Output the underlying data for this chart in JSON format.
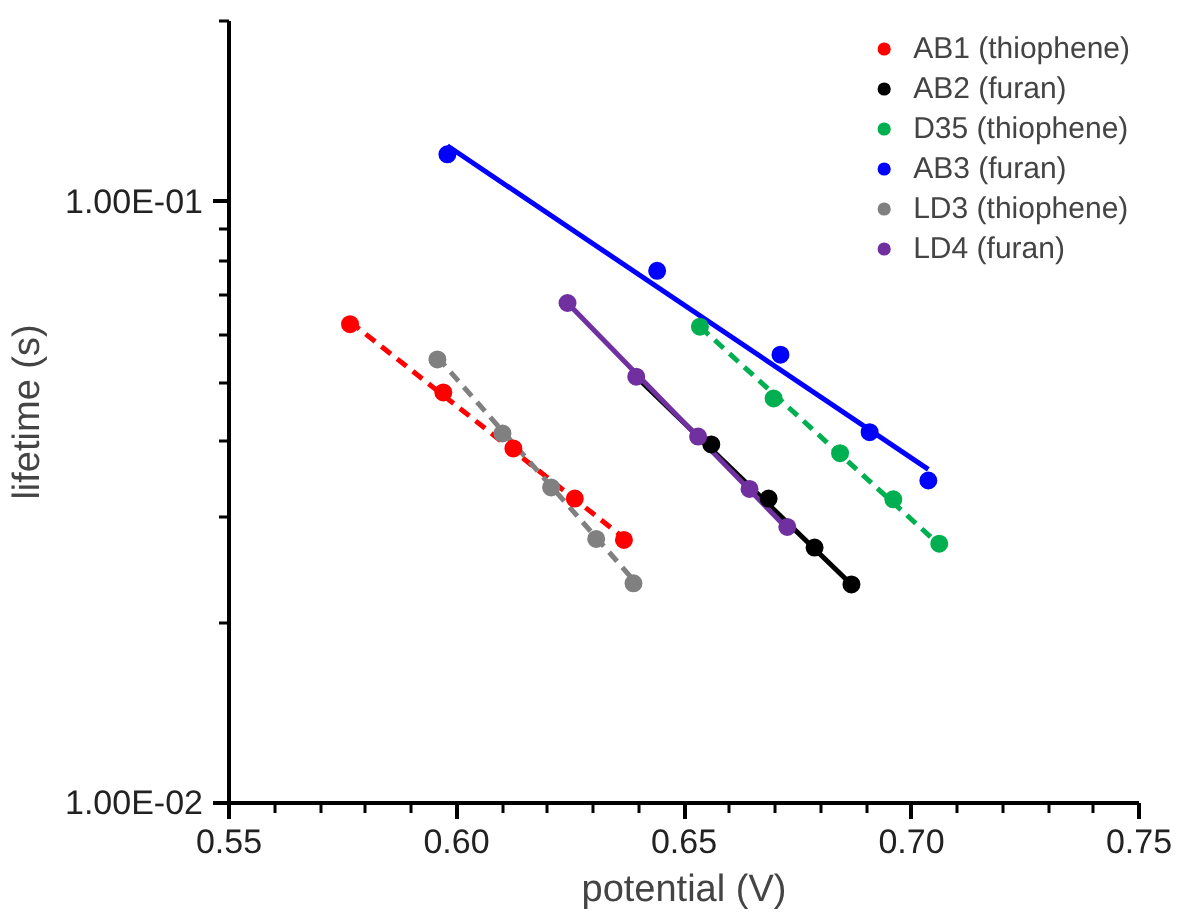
{
  "chart_data": {
    "type": "scatter",
    "xlabel": "potential (V)",
    "ylabel": "lifetime (s)",
    "xlim": [
      0.55,
      0.75
    ],
    "ylim": [
      0.01,
      0.2
    ],
    "log": "y",
    "grid": false,
    "legend": "top right",
    "marker": "circle",
    "xticks": [
      {
        "value": 0.55,
        "label": "0.55"
      },
      {
        "value": 0.56,
        "label": null
      },
      {
        "value": 0.57,
        "label": null
      },
      {
        "value": 0.58,
        "label": null
      },
      {
        "value": 0.59,
        "label": null
      },
      {
        "value": 0.6,
        "label": "0.60"
      },
      {
        "value": 0.61,
        "label": null
      },
      {
        "value": 0.62,
        "label": null
      },
      {
        "value": 0.63,
        "label": null
      },
      {
        "value": 0.64,
        "label": null
      },
      {
        "value": 0.65,
        "label": "0.65"
      },
      {
        "value": 0.66,
        "label": null
      },
      {
        "value": 0.67,
        "label": null
      },
      {
        "value": 0.68,
        "label": null
      },
      {
        "value": 0.69,
        "label": null
      },
      {
        "value": 0.7,
        "label": "0.70"
      },
      {
        "value": 0.71,
        "label": null
      },
      {
        "value": 0.72,
        "label": null
      },
      {
        "value": 0.73,
        "label": null
      },
      {
        "value": 0.74,
        "label": null
      },
      {
        "value": 0.75,
        "label": "0.75"
      }
    ],
    "yticks": [
      {
        "value": 0.01,
        "label": "1.00E-02"
      },
      {
        "value": 0.02,
        "label": null
      },
      {
        "value": 0.03,
        "label": null
      },
      {
        "value": 0.04,
        "label": null
      },
      {
        "value": 0.05,
        "label": null
      },
      {
        "value": 0.06,
        "label": null
      },
      {
        "value": 0.07,
        "label": null
      },
      {
        "value": 0.08,
        "label": null
      },
      {
        "value": 0.09,
        "label": null
      },
      {
        "value": 0.1,
        "label": "1.00E-01"
      },
      {
        "value": 0.2,
        "label": null
      }
    ],
    "series": [
      {
        "name": "AB1 (thiophene)",
        "color": "#ff0000",
        "x": [
          0.5766,
          0.5971,
          0.6125,
          0.626,
          0.6368
        ],
        "values": [
          0.0626,
          0.0482,
          0.0389,
          0.0321,
          0.0274
        ]
      },
      {
        "name": "AB2 (furan)",
        "color": "#000000",
        "x": [
          0.656,
          0.6686,
          0.6787,
          0.6868
        ],
        "values": [
          0.0395,
          0.0321,
          0.0266,
          0.0231
        ]
      },
      {
        "name": "D35 (thiophene)",
        "color": "#00b050",
        "x": [
          0.6535,
          0.6697,
          0.6843,
          0.696,
          0.7061
        ],
        "values": [
          0.062,
          0.0471,
          0.0382,
          0.032,
          0.027
        ]
      },
      {
        "name": "AB3 (furan)",
        "color": "#0000ff",
        "x": [
          0.598,
          0.6441,
          0.6712,
          0.6908,
          0.7037
        ],
        "values": [
          0.12,
          0.0768,
          0.0557,
          0.0414,
          0.0344
        ]
      },
      {
        "name": "LD3 (thiophene)",
        "color": "#808080",
        "x": [
          0.5958,
          0.6101,
          0.6208,
          0.6307,
          0.6389
        ],
        "values": [
          0.0547,
          0.0412,
          0.0335,
          0.0275,
          0.0232
        ]
      },
      {
        "name": "LD4 (furan)",
        "color": "#7030a0",
        "x": [
          0.6244,
          0.6395,
          0.6531,
          0.6644,
          0.6727
        ],
        "values": [
          0.0679,
          0.0512,
          0.0407,
          0.0333,
          0.0288
        ]
      },
      {
        "type": "line",
        "marker": "none",
        "color": "#ff0000",
        "line_style": "dashed",
        "x": [
          0.5766,
          0.6368
        ],
        "values": [
          0.0632,
          0.0276
        ]
      },
      {
        "type": "line",
        "marker": "none",
        "color": "#000000",
        "line_style": "solid",
        "x": [
          0.6395,
          0.6868
        ],
        "values": [
          0.0512,
          0.0231
        ]
      },
      {
        "type": "line",
        "marker": "none",
        "color": "#00b050",
        "line_style": "dashed",
        "x": [
          0.6535,
          0.7061
        ],
        "values": [
          0.062,
          0.0269
        ]
      },
      {
        "type": "line",
        "marker": "none",
        "color": "#0000ff",
        "line_style": "solid",
        "x": [
          0.598,
          0.7037
        ],
        "values": [
          0.124,
          0.0359
        ]
      },
      {
        "type": "line",
        "marker": "none",
        "color": "#808080",
        "line_style": "dashed",
        "x": [
          0.5958,
          0.6389
        ],
        "values": [
          0.0552,
          0.0235
        ]
      },
      {
        "type": "line",
        "marker": "none",
        "color": "#7030a0",
        "line_style": "solid",
        "x": [
          0.6244,
          0.6727
        ],
        "values": [
          0.0679,
          0.0286
        ]
      }
    ]
  }
}
